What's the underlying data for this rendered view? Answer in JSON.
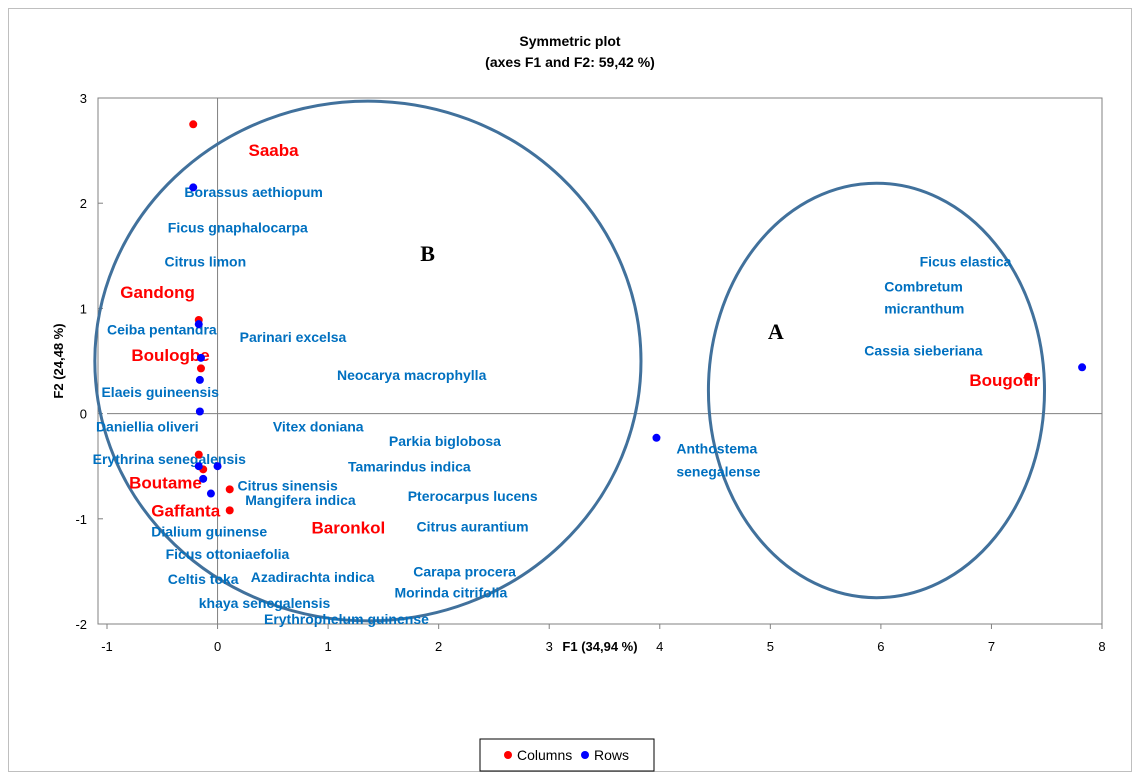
{
  "chart_data": {
    "type": "scatter",
    "title": "Symmetric plot",
    "subtitle": "(axes F1 and F2: 59,42 %)",
    "xlabel": "F1 (34,94 %)",
    "ylabel": "F2 (24,48 %)",
    "xlim": [
      -1,
      8
    ],
    "ylim": [
      -2,
      3
    ],
    "x_ticks": [
      -1,
      0,
      1,
      2,
      3,
      4,
      5,
      6,
      7,
      8
    ],
    "y_ticks": [
      -2,
      -1,
      0,
      1,
      2,
      3
    ],
    "grid": false,
    "legend_position": "bottom",
    "series": [
      {
        "name": "Columns",
        "color": "#ff0000",
        "points": [
          {
            "x": -0.22,
            "y": 2.75
          },
          {
            "x": -0.17,
            "y": 0.89
          },
          {
            "x": -0.15,
            "y": 0.43
          },
          {
            "x": -0.17,
            "y": -0.39
          },
          {
            "x": -0.13,
            "y": -0.53
          },
          {
            "x": 0.11,
            "y": -0.72
          },
          {
            "x": 0.11,
            "y": -0.92
          },
          {
            "x": 7.33,
            "y": 0.35
          }
        ]
      },
      {
        "name": "Rows",
        "color": "#0000ff",
        "points": [
          {
            "x": -0.22,
            "y": 2.15
          },
          {
            "x": -0.17,
            "y": 0.85
          },
          {
            "x": -0.15,
            "y": 0.53
          },
          {
            "x": -0.16,
            "y": 0.32
          },
          {
            "x": -0.16,
            "y": 0.02
          },
          {
            "x": -0.17,
            "y": -0.5
          },
          {
            "x": 0.0,
            "y": -0.5
          },
          {
            "x": -0.13,
            "y": -0.62
          },
          {
            "x": -0.06,
            "y": -0.76
          },
          {
            "x": 3.97,
            "y": -0.23
          },
          {
            "x": 7.82,
            "y": 0.44
          }
        ]
      }
    ],
    "row_labels": [
      {
        "text": "Borassus aethiopum",
        "x": -0.3,
        "y": 2.06
      },
      {
        "text": "Ficus gnaphalocarpa",
        "x": -0.45,
        "y": 1.72
      },
      {
        "text": "Citrus limon",
        "x": -0.48,
        "y": 1.4
      },
      {
        "text": "Ceiba pentandra",
        "x": -1.0,
        "y": 0.75
      },
      {
        "text": "Parinari excelsa",
        "x": 0.2,
        "y": 0.68
      },
      {
        "text": "Elaeis guineensis",
        "x": -1.05,
        "y": 0.16
      },
      {
        "text": "Neocarya macrophylla",
        "x": 1.08,
        "y": 0.32
      },
      {
        "text": "Daniellia oliveri",
        "x": -1.1,
        "y": -0.17
      },
      {
        "text": "Vitex doniana",
        "x": 0.5,
        "y": -0.17
      },
      {
        "text": "Parkia biglobosa",
        "x": 1.55,
        "y": -0.31
      },
      {
        "text": "Erythrina senegalensis",
        "x": -1.13,
        "y": -0.48
      },
      {
        "text": "Tamarindus indica",
        "x": 1.18,
        "y": -0.55
      },
      {
        "text": "Citrus sinensis",
        "x": 0.18,
        "y": -0.73
      },
      {
        "text": "Mangifera indica",
        "x": 0.25,
        "y": -0.87
      },
      {
        "text": "Pterocarpus lucens",
        "x": 1.72,
        "y": -0.83
      },
      {
        "text": "Dialium guinense",
        "x": -0.6,
        "y": -1.17
      },
      {
        "text": "Citrus aurantium",
        "x": 1.8,
        "y": -1.12
      },
      {
        "text": "Ficus ottoniaefolia",
        "x": -0.47,
        "y": -1.38
      },
      {
        "text": "Carapa procera",
        "x": 1.77,
        "y": -1.55
      },
      {
        "text": "Celtis toka",
        "x": -0.45,
        "y": -1.62
      },
      {
        "text": "Azadirachta indica",
        "x": 0.3,
        "y": -1.6
      },
      {
        "text": "Morinda citrifolia",
        "x": 1.6,
        "y": -1.75
      },
      {
        "text": "khaya senegalensis",
        "x": -0.17,
        "y": -1.85
      },
      {
        "text": "Erythrophelum guinense",
        "x": 0.42,
        "y": -2.0
      },
      {
        "text": "Ficus elastica",
        "x": 6.35,
        "y": 1.4
      },
      {
        "text": "Combretum",
        "x": 6.03,
        "y": 1.16
      },
      {
        "text": "micranthum",
        "x": 6.03,
        "y": 0.95
      },
      {
        "text": "Cassia sieberiana",
        "x": 5.85,
        "y": 0.55
      },
      {
        "text": "Anthostema",
        "x": 4.15,
        "y": -0.38
      },
      {
        "text": "senegalense",
        "x": 4.15,
        "y": -0.6
      }
    ],
    "column_labels": [
      {
        "text": "Saaba",
        "x": 0.28,
        "y": 2.45
      },
      {
        "text": "Gandong",
        "x": -0.88,
        "y": 1.1
      },
      {
        "text": "Boulogbe",
        "x": -0.78,
        "y": 0.5
      },
      {
        "text": "Boutame",
        "x": -0.8,
        "y": -0.71
      },
      {
        "text": "Gaffanta",
        "x": -0.6,
        "y": -0.98
      },
      {
        "text": "Baronkol",
        "x": 0.85,
        "y": -1.14
      },
      {
        "text": "Bougotir",
        "x": 6.8,
        "y": 0.26
      }
    ],
    "annotations": [
      {
        "text": "B",
        "x": 1.9,
        "y": 1.45
      },
      {
        "text": "A",
        "x": 5.05,
        "y": 0.71
      }
    ],
    "circles": [
      {
        "cx": 1.36,
        "cy": 0.5,
        "rx": 2.47,
        "ry": 2.47
      },
      {
        "cx": 5.96,
        "cy": 0.22,
        "rx": 1.52,
        "ry": 1.97
      }
    ]
  }
}
